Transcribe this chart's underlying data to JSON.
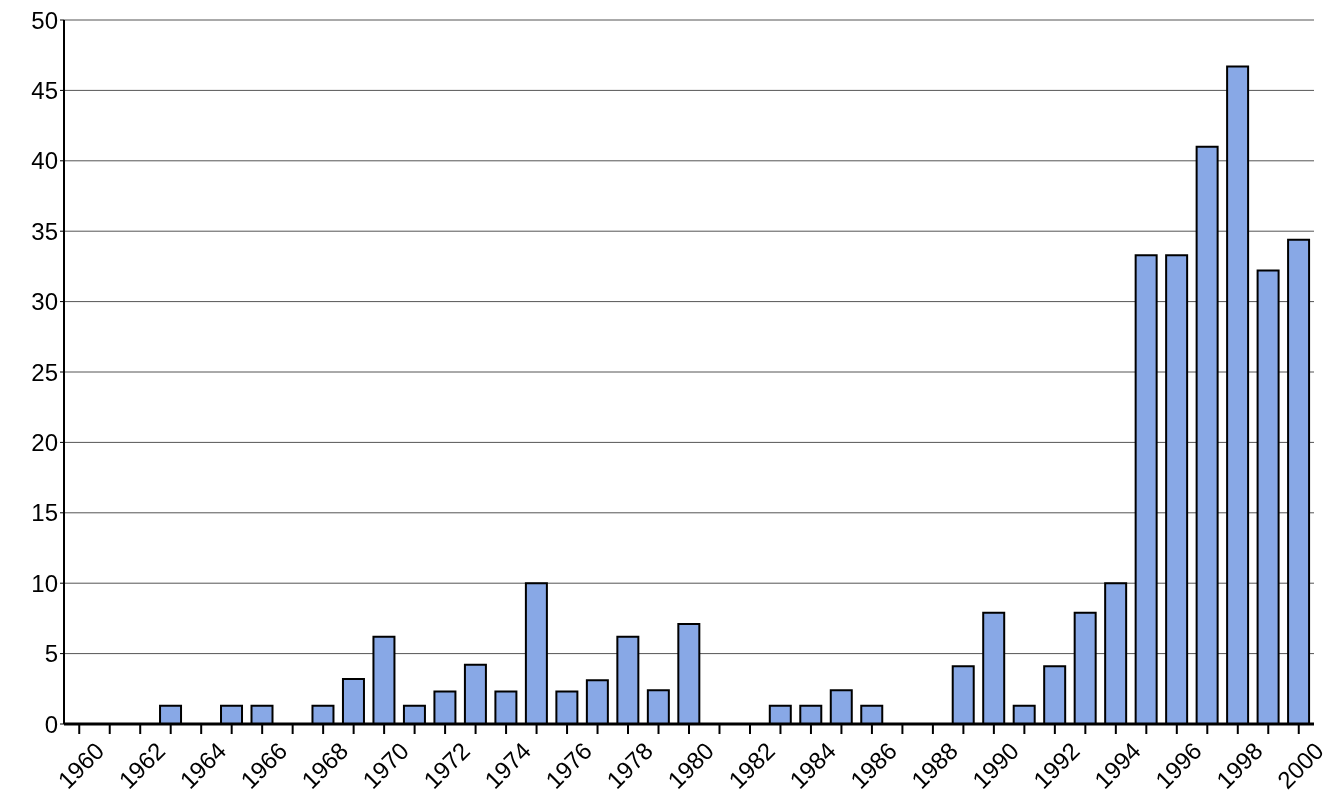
{
  "chart_data": {
    "type": "bar",
    "categories": [
      "1960",
      null,
      "1962",
      null,
      "1964",
      null,
      "1966",
      null,
      "1968",
      null,
      "1970",
      null,
      "1972",
      null,
      "1974",
      null,
      "1976",
      null,
      "1978",
      null,
      "1980",
      null,
      "1982",
      null,
      "1984",
      null,
      "1986",
      null,
      "1988",
      null,
      "1990",
      null,
      "1992",
      null,
      "1994",
      null,
      "1996",
      null,
      "1998",
      null,
      "2000"
    ],
    "values": [
      0,
      0,
      0,
      1.3,
      0,
      1.3,
      1.3,
      0,
      1.3,
      3.2,
      6.2,
      1.3,
      2.3,
      4.2,
      2.3,
      10,
      2.3,
      3.1,
      6.2,
      2.4,
      7.1,
      0,
      0,
      1.3,
      1.3,
      2.4,
      1.3,
      0,
      0,
      4.1,
      7.9,
      1.3,
      4.1,
      7.9,
      10,
      33.3,
      33.3,
      41,
      46.7,
      32.2,
      34.4
    ],
    "color": "#88a8e6",
    "ylim": [
      0,
      50
    ],
    "yticks": [
      0,
      5,
      10,
      15,
      20,
      25,
      30,
      35,
      40,
      45,
      50
    ],
    "grid": "y"
  }
}
